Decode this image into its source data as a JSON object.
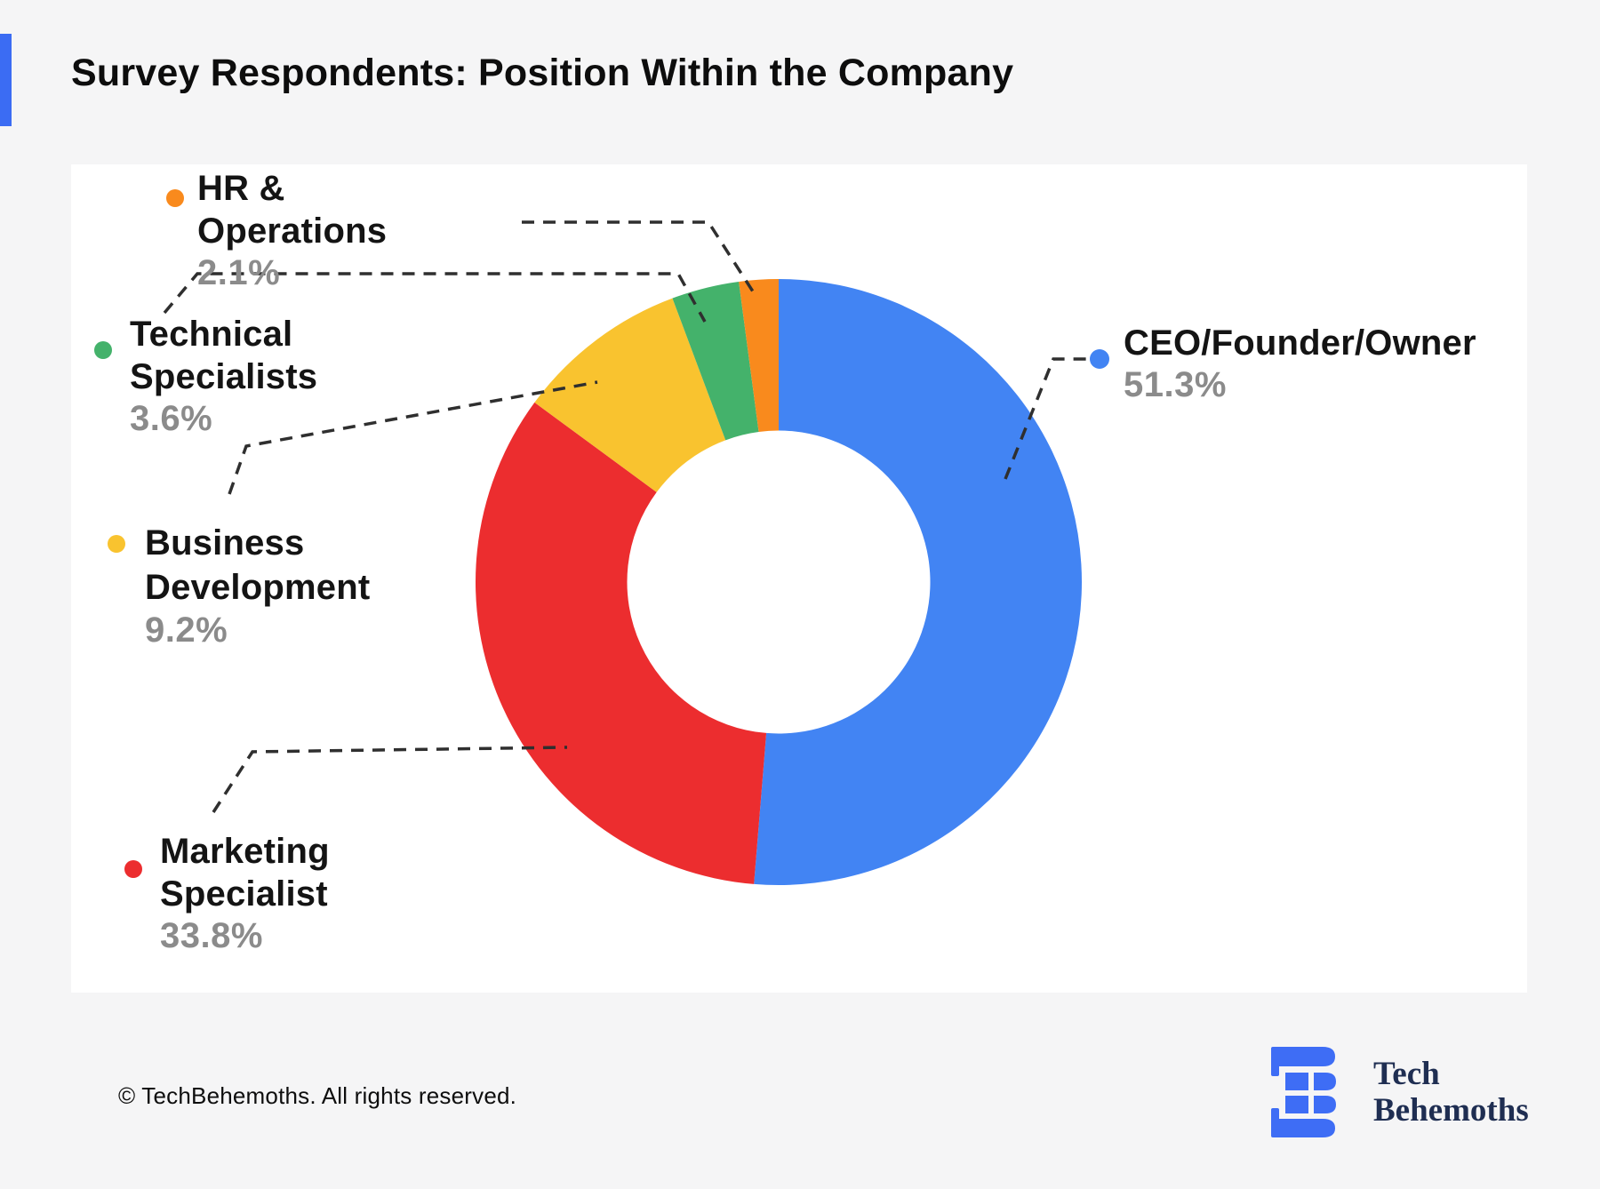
{
  "page": {
    "background": "#f5f5f6",
    "accent_color": "#3b6cf3",
    "card_color": "#ffffff"
  },
  "header": {
    "title": "Survey Respondents: Position Within the Company"
  },
  "chart_data": {
    "type": "pie",
    "donut": true,
    "title": "Survey Respondents: Position Within the Company",
    "direction": "clockwise",
    "start_angle_deg": 0,
    "inner_radius_ratio": 0.5,
    "legend_position": "callouts",
    "slices": [
      {
        "label": "CEO/Founder/Owner",
        "value": 51.3,
        "color": "#4284F3"
      },
      {
        "label": "Marketing Specialist",
        "value": 33.8,
        "color": "#EC2D2F"
      },
      {
        "label": "Business Development",
        "value": 9.2,
        "color": "#F9C32F"
      },
      {
        "label": "Technical Specialists",
        "value": 3.6,
        "color": "#44B26B"
      },
      {
        "label": "HR & Operations",
        "value": 2.1,
        "color": "#F98A1D"
      }
    ]
  },
  "callouts": {
    "ceo": {
      "pct": "51.3%"
    },
    "marketing": {
      "pct": "33.8%"
    },
    "business": {
      "pct": "9.2%"
    },
    "technical": {
      "pct": "3.6%"
    },
    "hr": {
      "pct": "2.1%"
    }
  },
  "footer": {
    "copyright": "© TechBehemoths. All rights reserved.",
    "logo": {
      "line1": "Tech",
      "line2": "Behemoths",
      "mark_color": "#3e6df5",
      "text_color": "#1f2e52"
    }
  }
}
